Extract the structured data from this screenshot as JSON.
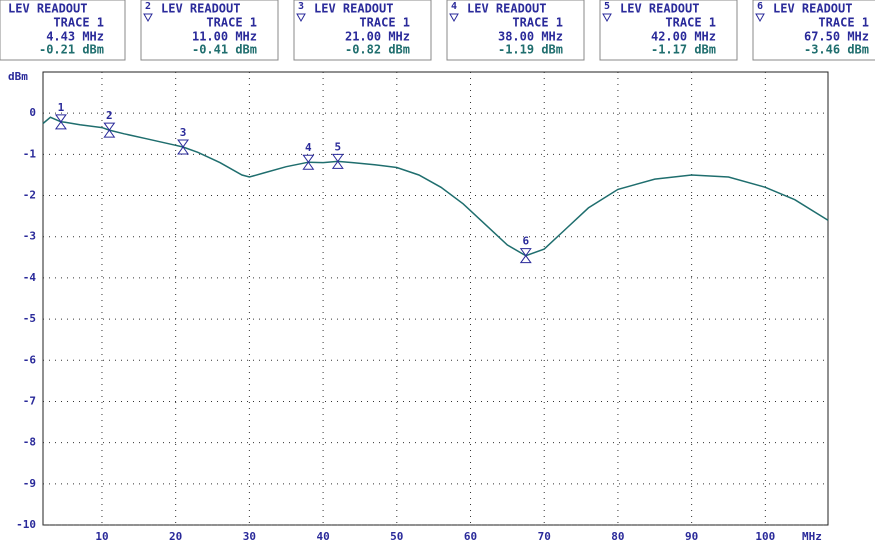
{
  "chart_data": {
    "type": "line",
    "y_label": "dBm",
    "x_label": "MHz",
    "xlim": [
      2,
      108.5
    ],
    "ylim": [
      -10,
      1
    ],
    "xticks": [
      10,
      20,
      30,
      40,
      50,
      60,
      70,
      80,
      90,
      100
    ],
    "yticks": [
      0,
      -1,
      -2,
      -3,
      -4,
      -5,
      -6,
      -7,
      -8,
      -9,
      -10
    ],
    "grid": true,
    "series": [
      {
        "name": "TRACE 1",
        "color": "#1f6e6e",
        "x": [
          2,
          3,
          4.43,
          5,
          7,
          10,
          11,
          13,
          16,
          20,
          21,
          23,
          26,
          29,
          30,
          32,
          35,
          38,
          40,
          42,
          44,
          47,
          50,
          53,
          56,
          59,
          62,
          65,
          67.5,
          70,
          73,
          76,
          80,
          85,
          90,
          95,
          100,
          104,
          108.5
        ],
        "values": [
          -0.25,
          -0.1,
          -0.21,
          -0.22,
          -0.28,
          -0.35,
          -0.41,
          -0.5,
          -0.62,
          -0.78,
          -0.82,
          -0.95,
          -1.2,
          -1.5,
          -1.55,
          -1.45,
          -1.3,
          -1.19,
          -1.2,
          -1.17,
          -1.2,
          -1.25,
          -1.32,
          -1.5,
          -1.8,
          -2.2,
          -2.7,
          -3.2,
          -3.46,
          -3.3,
          -2.8,
          -2.3,
          -1.85,
          -1.6,
          -1.5,
          -1.55,
          -1.8,
          -2.1,
          -2.6
        ]
      }
    ],
    "markers": [
      {
        "number": "1",
        "title": "LEV READOUT",
        "trace": "TRACE 1",
        "x": 4.43,
        "x_label": "4.43 MHz",
        "value": -0.21,
        "value_label": "-0.21 dBm"
      },
      {
        "number": "2",
        "title": "LEV READOUT",
        "trace": "TRACE 1",
        "x": 11,
        "x_label": "11.00 MHz",
        "value": -0.41,
        "value_label": "-0.41 dBm"
      },
      {
        "number": "3",
        "title": "LEV READOUT",
        "trace": "TRACE 1",
        "x": 21,
        "x_label": "21.00 MHz",
        "value": -0.82,
        "value_label": "-0.82 dBm"
      },
      {
        "number": "4",
        "title": "LEV READOUT",
        "trace": "TRACE 1",
        "x": 38,
        "x_label": "38.00 MHz",
        "value": -1.19,
        "value_label": "-1.19 dBm"
      },
      {
        "number": "5",
        "title": "LEV READOUT",
        "trace": "TRACE 1",
        "x": 42,
        "x_label": "42.00 MHz",
        "value": -1.17,
        "value_label": "-1.17 dBm"
      },
      {
        "number": "6",
        "title": "LEV READOUT",
        "trace": "TRACE 1",
        "x": 67.5,
        "x_label": "67.50 MHz",
        "value": -3.46,
        "value_label": "-3.46 dBm"
      }
    ]
  }
}
